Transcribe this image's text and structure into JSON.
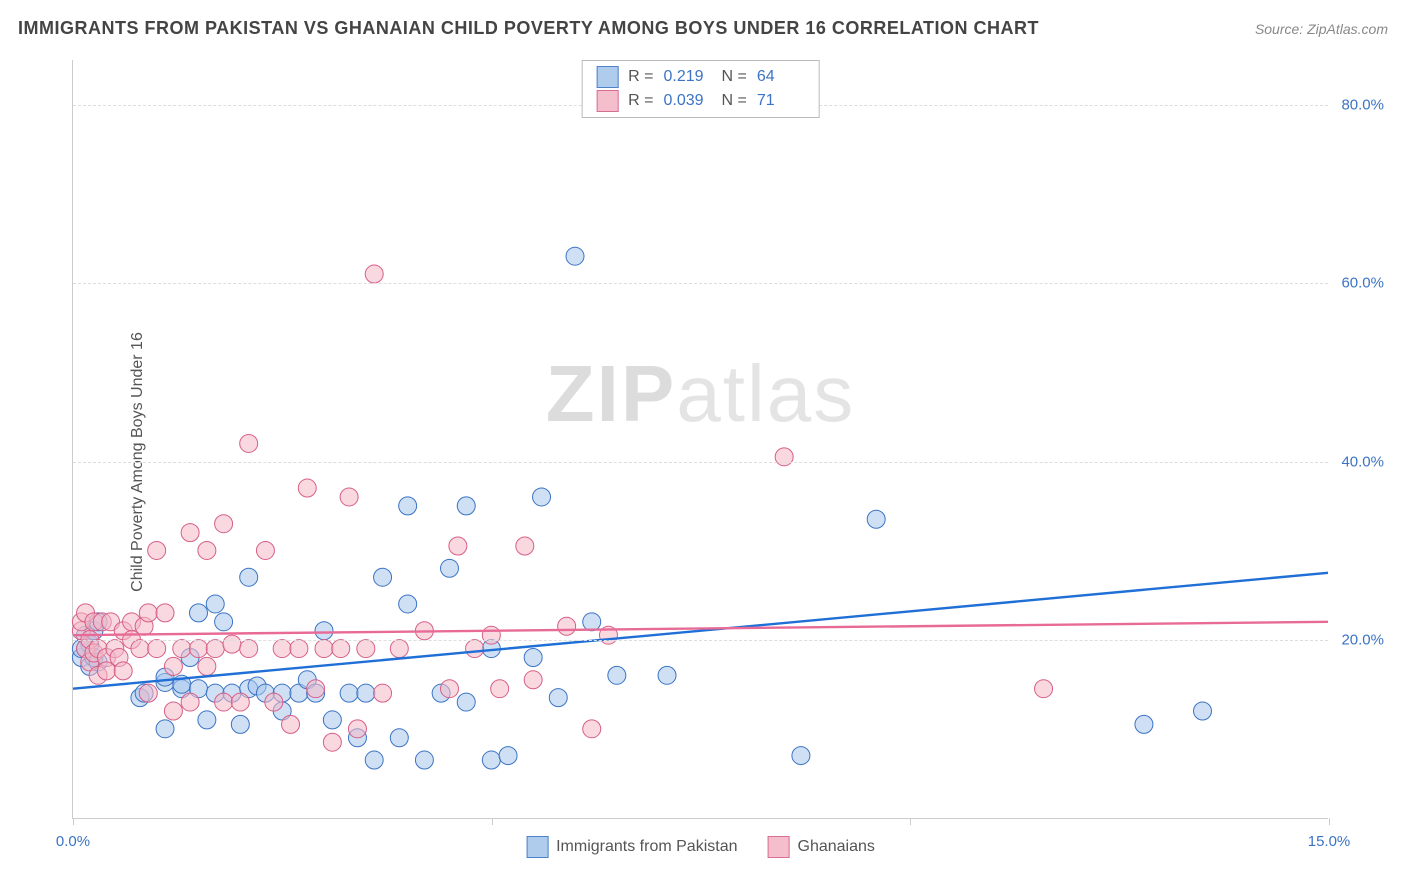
{
  "title": "IMMIGRANTS FROM PAKISTAN VS GHANAIAN CHILD POVERTY AMONG BOYS UNDER 16 CORRELATION CHART",
  "source": "Source: ZipAtlas.com",
  "y_axis_label": "Child Poverty Among Boys Under 16",
  "watermark_a": "ZIP",
  "watermark_b": "atlas",
  "chart": {
    "type": "scatter",
    "xlim": [
      0,
      15
    ],
    "ylim": [
      0,
      85
    ],
    "x_ticks": [
      0,
      5,
      10,
      15
    ],
    "x_tick_labels": [
      "0.0%",
      "",
      "",
      "15.0%"
    ],
    "y_ticks": [
      20,
      40,
      60,
      80
    ],
    "y_tick_labels": [
      "20.0%",
      "40.0%",
      "60.0%",
      "80.0%"
    ],
    "grid_color": "#dddddd",
    "axis_color": "#cccccc",
    "background_color": "#ffffff",
    "tick_label_color": "#3b74c4",
    "series": [
      {
        "key": "pakistan",
        "label": "Immigrants from Pakistan",
        "fill": "#a7c7ec",
        "fill_opacity": 0.55,
        "stroke": "#3b74c4",
        "line_color": "#1f6fd6",
        "line_width": 2.4,
        "marker_radius": 9,
        "r_value": "0.219",
        "n_value": "64",
        "regression": {
          "y_at_x0": 14.5,
          "y_at_xmax": 27.5
        },
        "points": [
          [
            0.1,
            18
          ],
          [
            0.1,
            19
          ],
          [
            0.15,
            20.5
          ],
          [
            0.2,
            17
          ],
          [
            0.2,
            19.5
          ],
          [
            0.25,
            21
          ],
          [
            0.25,
            18
          ],
          [
            0.3,
            17.5
          ],
          [
            0.3,
            22
          ],
          [
            0.15,
            19
          ],
          [
            0.8,
            13.5
          ],
          [
            0.85,
            14
          ],
          [
            1.1,
            10
          ],
          [
            1.1,
            15.2
          ],
          [
            1.1,
            15.8
          ],
          [
            1.3,
            14.5
          ],
          [
            1.3,
            15
          ],
          [
            1.4,
            18
          ],
          [
            1.5,
            23
          ],
          [
            1.5,
            14.5
          ],
          [
            1.6,
            11
          ],
          [
            1.7,
            24
          ],
          [
            1.7,
            14
          ],
          [
            1.8,
            22
          ],
          [
            1.9,
            14
          ],
          [
            2.0,
            10.5
          ],
          [
            2.1,
            14.5
          ],
          [
            2.1,
            27
          ],
          [
            2.2,
            14.8
          ],
          [
            2.3,
            14
          ],
          [
            2.5,
            14
          ],
          [
            2.5,
            12
          ],
          [
            2.7,
            14
          ],
          [
            2.8,
            15.5
          ],
          [
            2.9,
            14
          ],
          [
            3.0,
            21
          ],
          [
            3.1,
            11
          ],
          [
            3.3,
            14
          ],
          [
            3.4,
            9
          ],
          [
            3.5,
            14
          ],
          [
            3.6,
            6.5
          ],
          [
            3.7,
            27
          ],
          [
            3.9,
            9
          ],
          [
            4.0,
            24
          ],
          [
            4.0,
            35
          ],
          [
            4.2,
            6.5
          ],
          [
            4.4,
            14
          ],
          [
            4.5,
            28
          ],
          [
            4.7,
            35
          ],
          [
            4.7,
            13
          ],
          [
            5.0,
            6.5
          ],
          [
            5.0,
            19
          ],
          [
            5.2,
            7
          ],
          [
            5.5,
            18
          ],
          [
            5.6,
            36
          ],
          [
            5.8,
            13.5
          ],
          [
            6.0,
            63
          ],
          [
            6.2,
            22
          ],
          [
            6.5,
            16
          ],
          [
            7.1,
            16
          ],
          [
            8.7,
            7
          ],
          [
            9.6,
            33.5
          ],
          [
            12.8,
            10.5
          ],
          [
            13.5,
            12
          ]
        ]
      },
      {
        "key": "ghanaian",
        "label": "Ghanaians",
        "fill": "#f4b8c7",
        "fill_opacity": 0.55,
        "stroke": "#d75f87",
        "line_color": "#e86b97",
        "line_width": 2.4,
        "marker_radius": 9,
        "r_value": "0.039",
        "n_value": "71",
        "regression": {
          "y_at_x0": 20.5,
          "y_at_xmax": 22.0
        },
        "points": [
          [
            0.1,
            21
          ],
          [
            0.1,
            22
          ],
          [
            0.15,
            19
          ],
          [
            0.15,
            23
          ],
          [
            0.2,
            20
          ],
          [
            0.2,
            17.5
          ],
          [
            0.25,
            18.5
          ],
          [
            0.25,
            22
          ],
          [
            0.3,
            19
          ],
          [
            0.3,
            16
          ],
          [
            0.35,
            22
          ],
          [
            0.4,
            18
          ],
          [
            0.4,
            16.5
          ],
          [
            0.45,
            22
          ],
          [
            0.5,
            19
          ],
          [
            0.55,
            18
          ],
          [
            0.6,
            21
          ],
          [
            0.6,
            16.5
          ],
          [
            0.7,
            20
          ],
          [
            0.7,
            22
          ],
          [
            0.8,
            19
          ],
          [
            0.85,
            21.5
          ],
          [
            0.9,
            23
          ],
          [
            0.9,
            14
          ],
          [
            1.0,
            30
          ],
          [
            1.0,
            19
          ],
          [
            1.1,
            23
          ],
          [
            1.2,
            17
          ],
          [
            1.2,
            12
          ],
          [
            1.3,
            19
          ],
          [
            1.4,
            13
          ],
          [
            1.4,
            32
          ],
          [
            1.5,
            19
          ],
          [
            1.6,
            30
          ],
          [
            1.6,
            17
          ],
          [
            1.7,
            19
          ],
          [
            1.8,
            33
          ],
          [
            1.8,
            13
          ],
          [
            1.9,
            19.5
          ],
          [
            2.0,
            13
          ],
          [
            2.1,
            42
          ],
          [
            2.1,
            19
          ],
          [
            2.3,
            30
          ],
          [
            2.4,
            13
          ],
          [
            2.5,
            19
          ],
          [
            2.6,
            10.5
          ],
          [
            2.7,
            19
          ],
          [
            2.8,
            37
          ],
          [
            2.9,
            14.5
          ],
          [
            3.0,
            19
          ],
          [
            3.1,
            8.5
          ],
          [
            3.2,
            19
          ],
          [
            3.3,
            36
          ],
          [
            3.4,
            10
          ],
          [
            3.5,
            19
          ],
          [
            3.6,
            61
          ],
          [
            3.7,
            14
          ],
          [
            3.9,
            19
          ],
          [
            4.2,
            21
          ],
          [
            4.5,
            14.5
          ],
          [
            4.6,
            30.5
          ],
          [
            4.8,
            19
          ],
          [
            5.0,
            20.5
          ],
          [
            5.1,
            14.5
          ],
          [
            5.4,
            30.5
          ],
          [
            5.5,
            15.5
          ],
          [
            5.9,
            21.5
          ],
          [
            6.2,
            10
          ],
          [
            6.4,
            20.5
          ],
          [
            8.5,
            40.5
          ],
          [
            11.6,
            14.5
          ]
        ]
      }
    ]
  },
  "stats_box": {
    "r_label": "R  =",
    "n_label": "N  ="
  }
}
